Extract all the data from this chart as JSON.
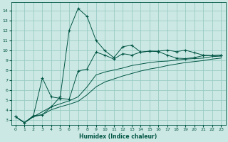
{
  "xlabel": "Humidex (Indice chaleur)",
  "bg_color": "#cce8e4",
  "grid_color": "#99ccc4",
  "line_color": "#005544",
  "xlim": [
    -0.5,
    23.5
  ],
  "ylim": [
    2.5,
    14.8
  ],
  "xticks": [
    0,
    1,
    2,
    3,
    4,
    5,
    6,
    7,
    8,
    9,
    10,
    11,
    12,
    13,
    14,
    15,
    16,
    17,
    18,
    19,
    20,
    21,
    22,
    23
  ],
  "yticks": [
    3,
    4,
    5,
    6,
    7,
    8,
    9,
    10,
    11,
    12,
    13,
    14
  ],
  "curve1_x": [
    0,
    1,
    2,
    3,
    4,
    5,
    6,
    7,
    8,
    9,
    10,
    11,
    12,
    13,
    14,
    15,
    16,
    17,
    18,
    19,
    20,
    21,
    22,
    23
  ],
  "curve1_y": [
    3.3,
    2.7,
    3.4,
    3.5,
    4.3,
    5.3,
    12.0,
    14.2,
    13.4,
    11.0,
    9.95,
    9.25,
    10.35,
    10.5,
    9.8,
    9.9,
    9.9,
    10.0,
    9.85,
    10.0,
    9.75,
    9.5,
    9.45,
    9.5
  ],
  "curve2_x": [
    0,
    1,
    2,
    3,
    4,
    5,
    6,
    7,
    8,
    9,
    10,
    11,
    12,
    13,
    14,
    15,
    16,
    17,
    18,
    19,
    20,
    21,
    22,
    23
  ],
  "curve2_y": [
    3.3,
    2.7,
    3.4,
    7.2,
    5.3,
    5.15,
    5.05,
    7.9,
    8.1,
    9.8,
    9.5,
    9.1,
    9.65,
    9.5,
    9.8,
    9.9,
    9.85,
    9.5,
    9.2,
    9.15,
    9.25,
    9.45,
    9.45,
    9.5
  ],
  "curve3_x": [
    0,
    1,
    2,
    3,
    4,
    5,
    6,
    7,
    8,
    9,
    10,
    11,
    12,
    13,
    14,
    15,
    16,
    17,
    18,
    19,
    20,
    21,
    22,
    23
  ],
  "curve3_y": [
    3.3,
    2.7,
    3.3,
    3.8,
    4.3,
    4.6,
    4.9,
    5.3,
    6.3,
    7.5,
    7.8,
    8.0,
    8.2,
    8.45,
    8.6,
    8.75,
    8.85,
    8.9,
    9.0,
    9.1,
    9.15,
    9.2,
    9.35,
    9.4
  ],
  "curve4_x": [
    0,
    1,
    2,
    3,
    4,
    5,
    6,
    7,
    8,
    9,
    10,
    11,
    12,
    13,
    14,
    15,
    16,
    17,
    18,
    19,
    20,
    21,
    22,
    23
  ],
  "curve4_y": [
    3.3,
    2.7,
    3.3,
    3.5,
    4.0,
    4.3,
    4.55,
    4.85,
    5.5,
    6.3,
    6.8,
    7.1,
    7.4,
    7.65,
    7.9,
    8.1,
    8.25,
    8.45,
    8.6,
    8.75,
    8.85,
    8.95,
    9.1,
    9.2
  ]
}
